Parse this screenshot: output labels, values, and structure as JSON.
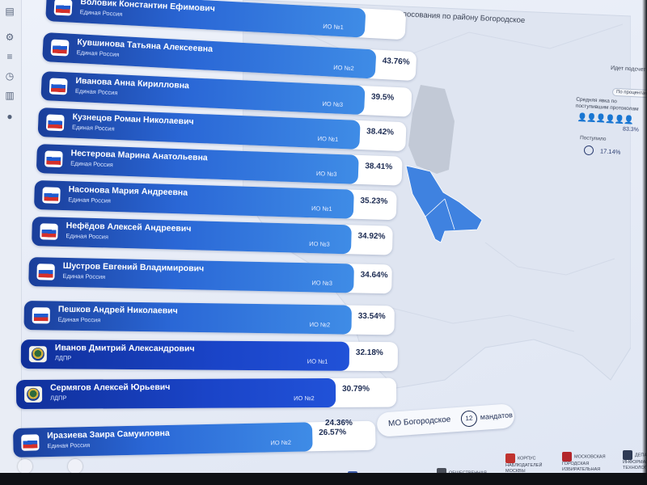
{
  "page": {
    "title": "Предварительные итоги голосования по району Богородское"
  },
  "right_panel": {
    "top_button": "Идет подсчет",
    "filter_button": "По процентам",
    "turnout_label": "Средняя явка по поступившим протоколам",
    "turnout_value": "83.3%",
    "received_label": "Поступило",
    "received_value": "17.14%"
  },
  "candidates": [
    {
      "name": "Воловик Константин Ефимович",
      "party": "Единая Россия",
      "district": "ИО №1",
      "percent": "",
      "share": 0.47,
      "party_code": "er"
    },
    {
      "name": "Кувшинова Татьяна Алексеевна",
      "party": "Единая Россия",
      "district": "ИО №2",
      "percent": "43.76%",
      "share": 0.4376,
      "party_code": "er"
    },
    {
      "name": "Иванова Анна Кирилловна",
      "party": "Единая Россия",
      "district": "ИО №3",
      "percent": "39.5%",
      "share": 0.395,
      "party_code": "er"
    },
    {
      "name": "Кузнецов Роман Николаевич",
      "party": "Единая Россия",
      "district": "ИО №1",
      "percent": "38.42%",
      "share": 0.3842,
      "party_code": "er"
    },
    {
      "name": "Нестерова Марина Анатольевна",
      "party": "Единая Россия",
      "district": "ИО №3",
      "percent": "38.41%",
      "share": 0.3841,
      "party_code": "er"
    },
    {
      "name": "Насонова Мария Андреевна",
      "party": "Единая Россия",
      "district": "ИО №1",
      "percent": "35.23%",
      "share": 0.3523,
      "party_code": "er"
    },
    {
      "name": "Нефёдов Алексей Андреевич",
      "party": "Единая Россия",
      "district": "ИО №3",
      "percent": "34.92%",
      "share": 0.3492,
      "party_code": "er"
    },
    {
      "name": "Шустров Евгений Владимирович",
      "party": "Единая Россия",
      "district": "ИО №3",
      "percent": "34.64%",
      "share": 0.3464,
      "party_code": "er"
    },
    {
      "name": "Пешков Андрей Николаевич",
      "party": "Единая Россия",
      "district": "ИО №2",
      "percent": "33.54%",
      "share": 0.3354,
      "party_code": "er"
    },
    {
      "name": "Иванов Дмитрий Александрович",
      "party": "ЛДПР",
      "district": "ИО №1",
      "percent": "32.18%",
      "share": 0.3218,
      "party_code": "ldpr"
    },
    {
      "name": "Сермягов Алексей Юрьевич",
      "party": "ЛДПР",
      "district": "ИО №2",
      "percent": "30.79%",
      "share": 0.3079,
      "party_code": "ldpr"
    },
    {
      "name": "Иразиева Заира Самуиловна",
      "party": "Единая Россия",
      "district": "ИО №2",
      "percent": "26.57%",
      "share": 0.2657,
      "party_code": "er"
    }
  ],
  "extra_percent": "24.36%",
  "footer": {
    "municipality": "МО Богородское",
    "mandates_count": "12",
    "mandates_label": "мандатов"
  },
  "bottom_logos": [
    {
      "text": "ОБЩЕСТВЕННЫЙ ШТАБ ПО НАБЛЮДЕНИЮ ЗА ВЫБОРАМИ В МОСКВЕ",
      "color": "#3b5aa8"
    },
    {
      "text": "ОБЩЕСТВЕННАЯ ПАЛАТА ГОРОДА МОСКВЫ",
      "color": "#4a4f5a"
    },
    {
      "text": "КОРПУС НАБЛЮДАТЕЛЕЙ МОСКВЫ",
      "color": "#c0332f"
    },
    {
      "text": "МОСКОВСКАЯ ГОРОДСКАЯ ИЗБИРАТЕЛЬНАЯ КОМИССИЯ",
      "color": "#b3262b"
    },
    {
      "text": "ДЕПАРТАМЕНТ ИНФОРМАЦИОННЫХ ТЕХНОЛОГИЙ",
      "color": "#2e3a55"
    }
  ],
  "colors": {
    "er_bar": "#2a67d6",
    "ldpr_bar": "#1a44c8",
    "map_highlight": "#3f82e0",
    "background": "#e8edf7"
  }
}
